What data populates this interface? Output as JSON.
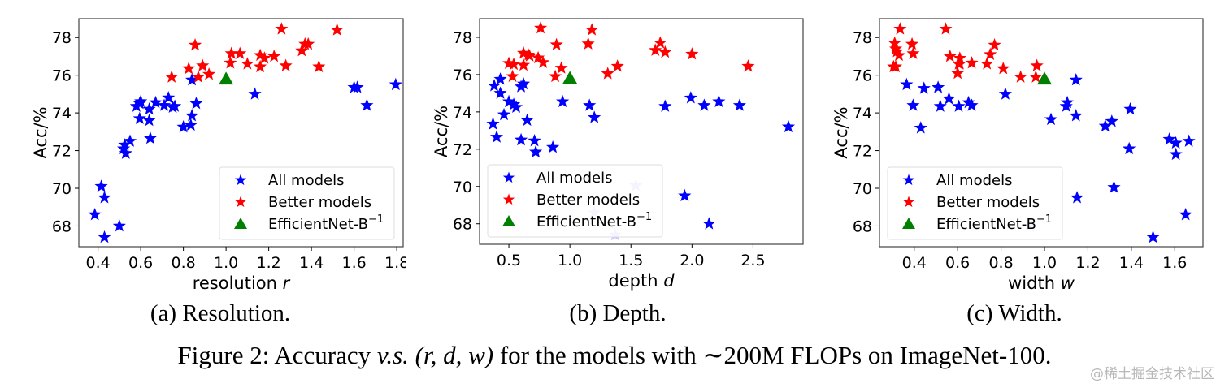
{
  "figure": {
    "caption_prefix": "Figure 2: Accuracy ",
    "caption_vs": "v.s.",
    "caption_math": "(r, d, w)",
    "caption_suffix": " for the models with ∼200M FLOPs on ImageNet-100.",
    "watermark": "@稀土掘金技术社区"
  },
  "legend": {
    "all_models": "All models",
    "better_models": "Better models",
    "efficientnet": "EfficientNet-B",
    "efficientnet_sup": "−1"
  },
  "colors": {
    "all_models": "#0000ff",
    "all_models_faded": "#c8c8f8",
    "better_models": "#ff0000",
    "efficientnet": "#008000"
  },
  "chart_data": [
    {
      "type": "scatter",
      "subcaption": "(a) Resolution.",
      "xlabel": "resolution",
      "xlabel_var": "r",
      "ylabel": "Acc/%",
      "xlim": [
        0.31,
        1.83
      ],
      "ylim": [
        66.9,
        79.0
      ],
      "xticks": [
        0.4,
        0.6,
        0.8,
        1.0,
        1.2,
        1.4,
        1.6,
        1.8
      ],
      "xtick_labels": [
        "0.4",
        "0.6",
        "0.8",
        "1.0",
        "1.2",
        "1.4",
        "1.6",
        "1.8"
      ],
      "yticks": [
        68,
        70,
        72,
        74,
        76,
        78
      ],
      "ytick_labels": [
        "68",
        "70",
        "72",
        "74",
        "76",
        "78"
      ],
      "grid": false,
      "legend_position": "lower-right",
      "series": [
        {
          "name": "All models",
          "marker": "star",
          "points": [
            [
              0.385,
              68.6
            ],
            [
              0.415,
              70.1
            ],
            [
              0.43,
              69.5
            ],
            [
              0.43,
              67.4
            ],
            [
              0.5,
              68.0
            ],
            [
              0.52,
              72.1
            ],
            [
              0.525,
              72.3
            ],
            [
              0.53,
              71.85
            ],
            [
              0.55,
              72.5
            ],
            [
              0.58,
              74.35
            ],
            [
              0.595,
              74.5
            ],
            [
              0.6,
              74.6
            ],
            [
              0.595,
              73.7
            ],
            [
              0.64,
              74.2
            ],
            [
              0.64,
              73.6
            ],
            [
              0.645,
              72.65
            ],
            [
              0.67,
              74.55
            ],
            [
              0.71,
              74.4
            ],
            [
              0.73,
              74.8
            ],
            [
              0.75,
              74.3
            ],
            [
              0.76,
              74.35
            ],
            [
              0.8,
              73.25
            ],
            [
              0.835,
              73.35
            ],
            [
              0.84,
              73.85
            ],
            [
              0.86,
              74.5
            ],
            [
              0.84,
              75.75
            ],
            [
              1.135,
              75.0
            ],
            [
              1.6,
              75.35
            ],
            [
              1.615,
              75.35
            ],
            [
              1.66,
              74.4
            ],
            [
              1.795,
              75.5
            ]
          ]
        },
        {
          "name": "Better models",
          "marker": "star",
          "points": [
            [
              0.745,
              75.9
            ],
            [
              0.825,
              76.35
            ],
            [
              0.855,
              77.6
            ],
            [
              0.87,
              75.9
            ],
            [
              0.89,
              76.5
            ],
            [
              0.92,
              76.05
            ],
            [
              1.02,
              76.65
            ],
            [
              1.025,
              77.15
            ],
            [
              1.065,
              77.15
            ],
            [
              1.1,
              76.6
            ],
            [
              1.16,
              77.05
            ],
            [
              1.16,
              76.45
            ],
            [
              1.18,
              76.9
            ],
            [
              1.225,
              77.0
            ],
            [
              1.26,
              78.45
            ],
            [
              1.28,
              76.5
            ],
            [
              1.355,
              77.3
            ],
            [
              1.37,
              77.65
            ],
            [
              1.385,
              77.65
            ],
            [
              1.435,
              76.45
            ],
            [
              1.52,
              78.4
            ]
          ]
        },
        {
          "name": "EfficientNet-B^-1",
          "marker": "triangle",
          "points": [
            [
              1.0,
              75.8
            ]
          ]
        }
      ]
    },
    {
      "type": "scatter",
      "subcaption": "(b) Depth.",
      "xlabel": "depth",
      "xlabel_var": "d",
      "ylabel": "Acc/%",
      "xlim": [
        0.26,
        2.91
      ],
      "ylim": [
        66.9,
        79.0
      ],
      "xticks": [
        0.5,
        1.0,
        1.5,
        2.0,
        2.5
      ],
      "xtick_labels": [
        "0.5",
        "1.0",
        "1.5",
        "2.0",
        "2.5"
      ],
      "yticks": [
        68,
        70,
        72,
        74,
        76,
        78
      ],
      "ytick_labels": [
        "68",
        "70",
        "72",
        "74",
        "76",
        "78"
      ],
      "grid": false,
      "legend_position": "lower-left",
      "series": [
        {
          "name": "All models",
          "marker": "star",
          "points": [
            [
              0.37,
              73.35
            ],
            [
              0.38,
              75.4
            ],
            [
              0.4,
              72.65
            ],
            [
              0.43,
              75.75
            ],
            [
              0.43,
              75.0
            ],
            [
              0.46,
              73.85
            ],
            [
              0.5,
              74.55
            ],
            [
              0.54,
              74.4
            ],
            [
              0.56,
              74.25
            ],
            [
              0.6,
              75.35
            ],
            [
              0.62,
              75.5
            ],
            [
              0.6,
              72.5
            ],
            [
              0.65,
              73.55
            ],
            [
              0.71,
              72.45
            ],
            [
              0.72,
              71.85
            ],
            [
              0.86,
              72.1
            ],
            [
              0.94,
              74.55
            ],
            [
              1.16,
              74.35
            ],
            [
              1.2,
              73.7
            ],
            [
              1.78,
              74.3
            ],
            [
              1.94,
              69.5
            ],
            [
              1.99,
              74.75
            ],
            [
              2.1,
              74.35
            ],
            [
              2.14,
              68.0
            ],
            [
              2.22,
              74.55
            ],
            [
              2.39,
              74.35
            ],
            [
              2.79,
              73.2
            ]
          ]
        },
        {
          "name": "All models (behind legend)",
          "marker": "star",
          "faded": true,
          "points": [
            [
              1.2,
              68.6
            ],
            [
              1.37,
              67.4
            ],
            [
              1.54,
              70.05
            ]
          ]
        },
        {
          "name": "Better models",
          "marker": "star",
          "points": [
            [
              0.5,
              76.6
            ],
            [
              0.54,
              76.55
            ],
            [
              0.53,
              75.9
            ],
            [
              0.62,
              76.5
            ],
            [
              0.62,
              77.15
            ],
            [
              0.66,
              77.05
            ],
            [
              0.67,
              77.0
            ],
            [
              0.74,
              76.9
            ],
            [
              0.76,
              78.5
            ],
            [
              0.78,
              76.65
            ],
            [
              0.88,
              75.9
            ],
            [
              0.89,
              77.6
            ],
            [
              0.93,
              76.35
            ],
            [
              1.15,
              77.65
            ],
            [
              1.18,
              78.4
            ],
            [
              1.31,
              76.05
            ],
            [
              1.39,
              76.45
            ],
            [
              1.7,
              77.3
            ],
            [
              1.74,
              77.7
            ],
            [
              1.78,
              77.2
            ],
            [
              2.0,
              77.1
            ],
            [
              2.46,
              76.45
            ]
          ]
        },
        {
          "name": "EfficientNet-B^-1",
          "marker": "triangle",
          "points": [
            [
              1.0,
              75.8
            ]
          ]
        }
      ]
    },
    {
      "type": "scatter",
      "subcaption": "(c) Width.",
      "xlabel": "width",
      "xlabel_var": "w",
      "ylabel": "Acc/%",
      "xlim": [
        0.24,
        1.73
      ],
      "ylim": [
        66.9,
        79.0
      ],
      "xticks": [
        0.4,
        0.6,
        0.8,
        1.0,
        1.2,
        1.4,
        1.6
      ],
      "xtick_labels": [
        "0.4",
        "0.6",
        "0.8",
        "1.0",
        "1.2",
        "1.4",
        "1.6"
      ],
      "yticks": [
        68,
        70,
        72,
        74,
        76,
        78
      ],
      "ytick_labels": [
        "68",
        "70",
        "72",
        "74",
        "76",
        "78"
      ],
      "grid": false,
      "legend_position": "lower-left",
      "series": [
        {
          "name": "All models",
          "marker": "star",
          "points": [
            [
              0.365,
              75.5
            ],
            [
              0.395,
              74.4
            ],
            [
              0.43,
              73.2
            ],
            [
              0.445,
              75.3
            ],
            [
              0.51,
              75.35
            ],
            [
              0.52,
              74.35
            ],
            [
              0.56,
              74.75
            ],
            [
              0.605,
              74.35
            ],
            [
              0.65,
              74.55
            ],
            [
              0.665,
              74.4
            ],
            [
              0.82,
              75.0
            ],
            [
              1.03,
              73.65
            ],
            [
              1.1,
              74.35
            ],
            [
              1.105,
              74.55
            ],
            [
              1.145,
              75.75
            ],
            [
              1.145,
              73.85
            ],
            [
              1.15,
              69.5
            ],
            [
              1.28,
              73.3
            ],
            [
              1.31,
              73.55
            ],
            [
              1.32,
              70.05
            ],
            [
              1.39,
              72.1
            ],
            [
              1.395,
              74.2
            ],
            [
              1.5,
              67.4
            ],
            [
              1.575,
              72.6
            ],
            [
              1.605,
              72.4
            ],
            [
              1.605,
              71.8
            ],
            [
              1.65,
              68.6
            ],
            [
              1.665,
              72.5
            ]
          ]
        },
        {
          "name": "All models (behind legend)",
          "marker": "star",
          "faded": true,
          "points": [
            [
              0.93,
              68.0
            ]
          ]
        },
        {
          "name": "Better models",
          "marker": "star",
          "points": [
            [
              0.305,
              76.45
            ],
            [
              0.315,
              76.45
            ],
            [
              0.31,
              77.7
            ],
            [
              0.315,
              77.4
            ],
            [
              0.32,
              77.25
            ],
            [
              0.33,
              77.05
            ],
            [
              0.335,
              78.45
            ],
            [
              0.39,
              77.65
            ],
            [
              0.395,
              77.15
            ],
            [
              0.545,
              78.45
            ],
            [
              0.565,
              77.0
            ],
            [
              0.6,
              76.1
            ],
            [
              0.605,
              76.6
            ],
            [
              0.61,
              76.9
            ],
            [
              0.61,
              76.6
            ],
            [
              0.665,
              76.65
            ],
            [
              0.735,
              76.6
            ],
            [
              0.75,
              77.1
            ],
            [
              0.77,
              77.6
            ],
            [
              0.81,
              76.35
            ],
            [
              0.89,
              75.9
            ],
            [
              0.96,
              75.9
            ],
            [
              0.965,
              76.5
            ]
          ]
        },
        {
          "name": "EfficientNet-B^-1",
          "marker": "triangle",
          "points": [
            [
              1.0,
              75.8
            ]
          ]
        }
      ]
    }
  ]
}
